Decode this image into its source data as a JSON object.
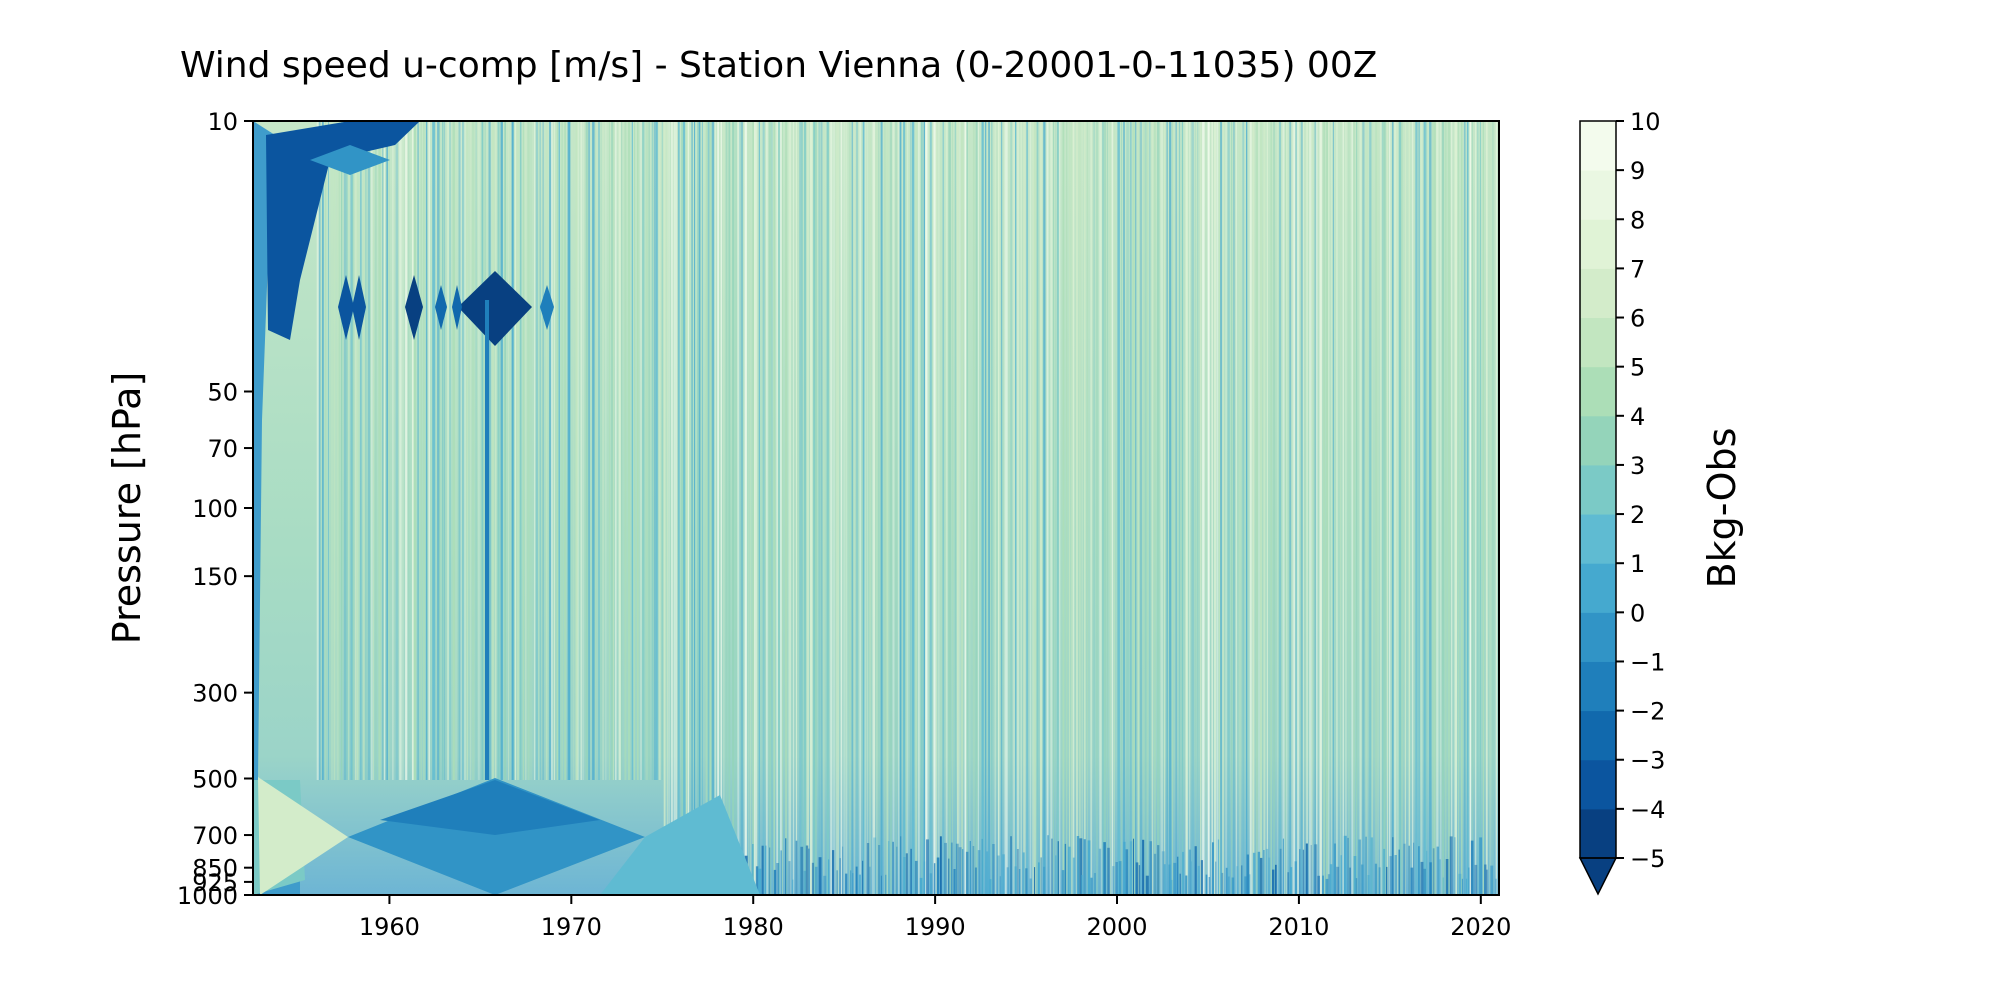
{
  "chart_data": {
    "type": "heatmap",
    "title": "Wind speed u-comp [m/s] - Station Vienna (0-20001-0-11035) 00Z",
    "xlabel": "",
    "ylabel": "Pressure [hPa]",
    "colorbar_label": "Bkg-Obs",
    "xlim": [
      1952.5,
      2021
    ],
    "ylim": [
      1000,
      10
    ],
    "x_ticks": [
      1960,
      1970,
      1980,
      1990,
      2000,
      2010,
      2020
    ],
    "x_tick_labels": [
      "1960",
      "1970",
      "1980",
      "1990",
      "2000",
      "2010",
      "2020"
    ],
    "y_ticks": [
      10,
      50,
      70,
      100,
      150,
      300,
      500,
      700,
      850,
      925,
      1000
    ],
    "y_tick_labels": [
      "10",
      "50",
      "70",
      "100",
      "150",
      "300",
      "500",
      "700",
      "850",
      "925",
      "1000"
    ],
    "colorbar_ticks": [
      10,
      9,
      8,
      7,
      6,
      5,
      4,
      3,
      2,
      1,
      0,
      -1,
      -2,
      -3,
      -4,
      -5
    ],
    "colorbar_tick_labels": [
      "10",
      "9",
      "8",
      "7",
      "6",
      "5",
      "4",
      "3",
      "2",
      "1",
      "0",
      "−1",
      "−2",
      "−3",
      "−4",
      "−5"
    ],
    "colorbar_range": [
      -5,
      10
    ],
    "colorbar_extend": "min",
    "colormap": "GnBu",
    "colormap_colors": [
      "#084081",
      "#0b559f",
      "#1169ad",
      "#1f7fbb",
      "#3194c6",
      "#45a9cf",
      "#5fbbd2",
      "#7bcac6",
      "#94d4ba",
      "#acdeb7",
      "#c2e6c0",
      "#d3ecca",
      "#e0f3d6",
      "#eaf7e2",
      "#f3fbed"
    ],
    "grid": false,
    "legend": "colorbar-right"
  }
}
